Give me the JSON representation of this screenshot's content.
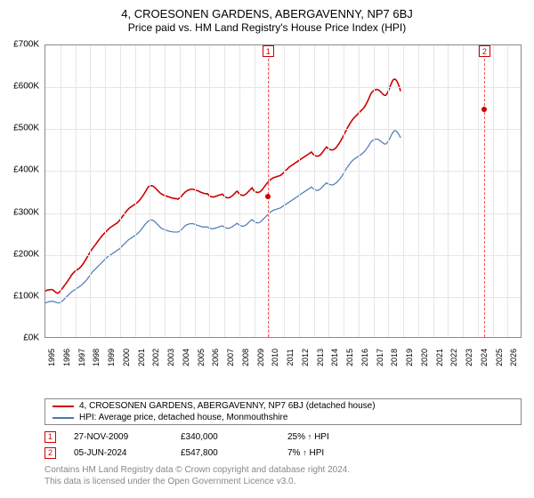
{
  "header": {
    "title": "4, CROESONEN GARDENS, ABERGAVENNY, NP7 6BJ",
    "subtitle": "Price paid vs. HM Land Registry's House Price Index (HPI)"
  },
  "chart": {
    "series": [
      {
        "name": "property",
        "label": "4, CROESONEN GARDENS, ABERGAVENNY, NP7 6BJ (detached house)",
        "color": "#cc0000",
        "stroke_width": 1.6,
        "values": [
          110,
          112,
          113,
          113,
          114,
          114,
          113,
          111,
          108,
          106,
          105,
          107,
          110,
          114,
          118,
          122,
          126,
          130,
          134,
          139,
          143,
          148,
          152,
          155,
          158,
          160,
          162,
          164,
          167,
          170,
          174,
          178,
          183,
          188,
          193,
          198,
          203,
          208,
          212,
          216,
          220,
          224,
          228,
          232,
          236,
          240,
          244,
          247,
          250,
          253,
          256,
          259,
          262,
          264,
          266,
          268,
          270,
          272,
          274,
          277,
          280,
          284,
          288,
          292,
          296,
          300,
          304,
          307,
          310,
          312,
          314,
          316,
          318,
          320,
          322,
          325,
          328,
          332,
          336,
          340,
          345,
          350,
          355,
          360,
          362,
          363,
          363,
          362,
          360,
          357,
          354,
          351,
          348,
          345,
          343,
          341,
          340,
          339,
          338,
          337,
          336,
          335,
          334,
          333,
          333,
          332,
          332,
          331,
          333,
          335,
          338,
          342,
          345,
          348,
          350,
          352,
          353,
          354,
          355,
          355,
          354,
          353,
          352,
          351,
          350,
          348,
          347,
          346,
          345,
          344,
          344,
          344,
          340,
          338,
          337,
          336,
          336,
          337,
          338,
          339,
          340,
          341,
          342,
          343,
          340,
          337,
          335,
          334,
          334,
          335,
          337,
          339,
          342,
          345,
          348,
          350,
          346,
          343,
          341,
          340,
          340,
          341,
          343,
          346,
          349,
          352,
          355,
          358,
          353,
          350,
          348,
          347,
          347,
          348,
          350,
          353,
          357,
          361,
          365,
          369,
          372,
          375,
          378,
          380,
          382,
          383,
          384,
          385,
          386,
          387,
          388,
          390,
          393,
          396,
          399,
          402,
          405,
          408,
          410,
          412,
          414,
          416,
          418,
          420,
          422,
          424,
          426,
          428,
          430,
          432,
          434,
          436,
          438,
          440,
          442,
          444,
          440,
          437,
          435,
          434,
          434,
          435,
          437,
          440,
          444,
          448,
          452,
          456,
          454,
          452,
          450,
          449,
          449,
          450,
          452,
          455,
          459,
          463,
          468,
          473,
          478,
          484,
          490,
          496,
          502,
          507,
          512,
          517,
          521,
          525,
          528,
          531,
          534,
          537,
          540,
          543,
          546,
          549,
          553,
          558,
          564,
          570,
          577,
          584,
          588,
          591,
          593,
          594,
          594,
          593,
          591,
          588,
          585,
          582,
          580,
          580,
          584,
          590,
          597,
          605,
          612,
          617,
          619,
          618,
          614,
          608,
          600,
          590
        ]
      },
      {
        "name": "hpi",
        "label": "HPI: Average price, detached house, Monmouthshire",
        "color": "#4a78b5",
        "stroke_width": 1.2,
        "values": [
          82,
          83,
          84,
          85,
          85,
          86,
          86,
          85,
          84,
          83,
          82,
          82,
          83,
          85,
          87,
          90,
          93,
          96,
          99,
          102,
          105,
          108,
          110,
          112,
          114,
          116,
          118,
          120,
          122,
          124,
          127,
          130,
          133,
          136,
          140,
          144,
          148,
          152,
          156,
          159,
          162,
          165,
          168,
          171,
          174,
          177,
          180,
          183,
          186,
          189,
          192,
          194,
          196,
          198,
          200,
          202,
          204,
          206,
          208,
          210,
          212,
          215,
          218,
          221,
          224,
          227,
          230,
          233,
          235,
          237,
          239,
          241,
          243,
          245,
          247,
          250,
          253,
          256,
          260,
          264,
          268,
          272,
          275,
          278,
          280,
          281,
          281,
          280,
          278,
          275,
          272,
          269,
          266,
          263,
          261,
          259,
          258,
          257,
          256,
          255,
          254,
          253,
          253,
          252,
          252,
          252,
          252,
          252,
          253,
          255,
          258,
          261,
          264,
          267,
          269,
          270,
          271,
          272,
          272,
          272,
          271,
          270,
          269,
          268,
          267,
          266,
          265,
          264,
          264,
          264,
          264,
          264,
          262,
          261,
          260,
          260,
          260,
          261,
          262,
          263,
          264,
          265,
          266,
          267,
          265,
          263,
          262,
          261,
          261,
          262,
          263,
          265,
          267,
          269,
          271,
          273,
          270,
          268,
          267,
          266,
          266,
          267,
          269,
          271,
          274,
          277,
          280,
          282,
          279,
          277,
          275,
          274,
          274,
          275,
          277,
          280,
          283,
          286,
          289,
          292,
          295,
          298,
          300,
          302,
          304,
          305,
          306,
          307,
          308,
          309,
          310,
          312,
          314,
          316,
          318,
          320,
          322,
          324,
          326,
          328,
          330,
          332,
          334,
          336,
          338,
          340,
          342,
          344,
          346,
          348,
          350,
          352,
          354,
          356,
          358,
          360,
          357,
          355,
          353,
          352,
          352,
          353,
          355,
          358,
          361,
          364,
          367,
          370,
          368,
          367,
          366,
          365,
          365,
          366,
          368,
          370,
          373,
          376,
          380,
          384,
          388,
          393,
          398,
          403,
          408,
          412,
          416,
          420,
          423,
          426,
          428,
          430,
          432,
          434,
          436,
          438,
          440,
          443,
          446,
          450,
          454,
          458,
          463,
          468,
          471,
          473,
          474,
          475,
          475,
          474,
          472,
          470,
          467,
          465,
          463,
          463,
          466,
          470,
          475,
          481,
          487,
          492,
          495,
          495,
          493,
          489,
          484,
          478
        ]
      }
    ],
    "points": [
      {
        "year_frac": 2009.91,
        "value": 340,
        "color": "#cc0000"
      },
      {
        "year_frac": 2024.43,
        "value": 547.8,
        "color": "#cc0000"
      }
    ],
    "markers_top": [
      {
        "label": "1",
        "year_frac": 2009.91
      },
      {
        "label": "2",
        "year_frac": 2024.43
      }
    ],
    "y_axis": {
      "min": 0,
      "max": 700,
      "step": 100,
      "tick_format": "£{v}K"
    },
    "x_axis": {
      "min": 1995,
      "max": 2027,
      "step": 1,
      "labels": [
        "1995",
        "1996",
        "1997",
        "1998",
        "1999",
        "2000",
        "2001",
        "2002",
        "2003",
        "2004",
        "2005",
        "2006",
        "2007",
        "2008",
        "2009",
        "2010",
        "2011",
        "2012",
        "2013",
        "2014",
        "2015",
        "2016",
        "2017",
        "2018",
        "2019",
        "2020",
        "2021",
        "2022",
        "2023",
        "2024",
        "2025",
        "2026"
      ]
    },
    "grid_color": "#e6e6e6",
    "background": "#ffffff",
    "border_color": "#888888"
  },
  "legend": {
    "items": [
      {
        "color": "#cc0000",
        "label": "4, CROESONEN GARDENS, ABERGAVENNY, NP7 6BJ (detached house)"
      },
      {
        "color": "#4a78b5",
        "label": "HPI: Average price, detached house, Monmouthshire"
      }
    ]
  },
  "events": [
    {
      "marker": "1",
      "date": "27-NOV-2009",
      "price": "£340,000",
      "pct": "25%",
      "dir": "↑",
      "suffix": "HPI"
    },
    {
      "marker": "2",
      "date": "05-JUN-2024",
      "price": "£547,800",
      "pct": "7%",
      "dir": "↑",
      "suffix": "HPI"
    }
  ],
  "footer": {
    "line1": "Contains HM Land Registry data © Crown copyright and database right 2024.",
    "line2": "This data is licensed under the Open Government Licence v3.0."
  }
}
